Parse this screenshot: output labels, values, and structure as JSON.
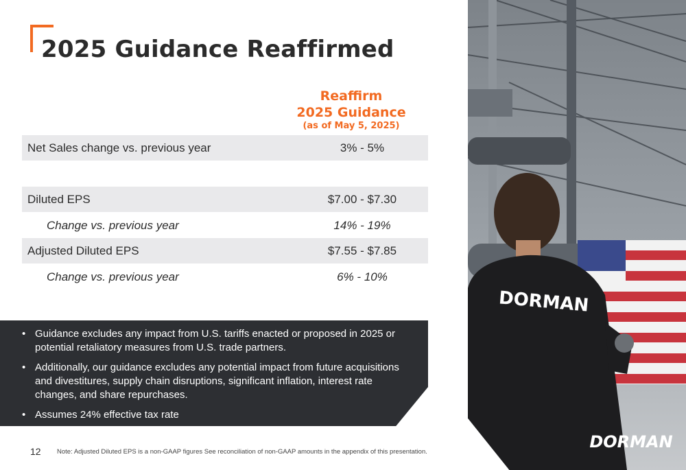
{
  "title": "2025 Guidance Reaffirmed",
  "column_header": {
    "line1": "Reaffirm",
    "line2": "2025 Guidance",
    "line3": "(as of May 5, 2025)"
  },
  "rows": [
    {
      "label": "Net Sales change vs. previous year",
      "value": "3% - 5%"
    },
    {
      "label": "Diluted EPS",
      "value": "$7.00 - $7.30"
    },
    {
      "label": "Change vs. previous year",
      "value": "14% - 19%"
    },
    {
      "label": "Adjusted Diluted EPS",
      "value": "$7.55 - $7.85"
    },
    {
      "label": "Change vs. previous year",
      "value": "6% - 10%"
    }
  ],
  "bullets": [
    "Guidance excludes any impact from U.S. tariffs enacted or proposed in 2025 or potential retaliatory measures from U.S. trade partners.",
    "Additionally, our guidance excludes any potential impact from future acquisitions and divestitures, supply chain disruptions, significant inflation, interest rate changes, and share repurchases.",
    "Assumes 24% effective tax rate"
  ],
  "bullet_symbol": "•",
  "page_number": "12",
  "footnote": "Note: Adjusted Diluted EPS is a non-GAAP figures See reconciliation of non-GAAP amounts in the appendix of this presentation.",
  "photo": {
    "shirt_text": "DORMAN",
    "logo_text": "DORMAN"
  },
  "colors": {
    "accent": "#f26a21",
    "text": "#2b2b2b",
    "row_shade": "#e9e9eb",
    "notes_bg": "#2d2f33"
  }
}
